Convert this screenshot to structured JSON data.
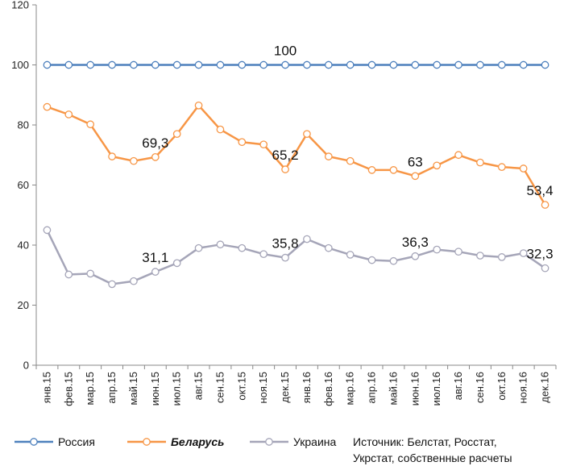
{
  "chart_data": {
    "type": "line",
    "categories": [
      "янв.15",
      "фев.15",
      "мар.15",
      "апр.15",
      "май.15",
      "июн.15",
      "июл.15",
      "авг.15",
      "сен.15",
      "окт.15",
      "ноя.15",
      "дек.15",
      "янв.16",
      "фев.16",
      "мар.16",
      "апр.16",
      "май.16",
      "июн.16",
      "июл.16",
      "авг.16",
      "сен.16",
      "окт.16",
      "ноя.16",
      "дек.16"
    ],
    "ylim": [
      0,
      120
    ],
    "yticks": [
      0,
      20,
      40,
      60,
      80,
      100,
      120
    ],
    "grid": false,
    "legend_position": "bottom",
    "series": [
      {
        "name": "Россия",
        "color": "#4f81bd",
        "bold": false,
        "values": [
          100,
          100,
          100,
          100,
          100,
          100,
          100,
          100,
          100,
          100,
          100,
          100,
          100,
          100,
          100,
          100,
          100,
          100,
          100,
          100,
          100,
          100,
          100,
          100
        ]
      },
      {
        "name": "Беларусь",
        "color": "#f79646",
        "bold": true,
        "values": [
          86,
          83.5,
          80.2,
          69.5,
          68,
          69.3,
          77,
          86.5,
          78.5,
          74.3,
          73.5,
          65.2,
          77,
          69.5,
          68,
          65,
          65,
          63,
          66.5,
          70,
          67.5,
          66,
          65.5,
          53.4
        ]
      },
      {
        "name": "Украина",
        "color": "#a5a5b8",
        "bold": false,
        "values": [
          45,
          30.2,
          30.5,
          27,
          28,
          31.1,
          34,
          39,
          40.2,
          39,
          37,
          35.8,
          42,
          39,
          36.8,
          35,
          34.7,
          36.3,
          38.5,
          37.8,
          36.5,
          36,
          37.3,
          32.3
        ]
      }
    ],
    "annotations": [
      {
        "text": "100",
        "series": 0,
        "index": 11
      },
      {
        "text": "69,3",
        "series": 1,
        "index": 5
      },
      {
        "text": "65,2",
        "series": 1,
        "index": 11
      },
      {
        "text": "63",
        "series": 1,
        "index": 17
      },
      {
        "text": "53,4",
        "series": 1,
        "index": 23
      },
      {
        "text": "31,1",
        "series": 2,
        "index": 5
      },
      {
        "text": "35,8",
        "series": 2,
        "index": 11
      },
      {
        "text": "36,3",
        "series": 2,
        "index": 17
      },
      {
        "text": "32,3",
        "series": 2,
        "index": 23
      }
    ],
    "source_lines": [
      "Источник: Белстат, Росстат,",
      "Укрстат, собственные расчеты"
    ]
  }
}
